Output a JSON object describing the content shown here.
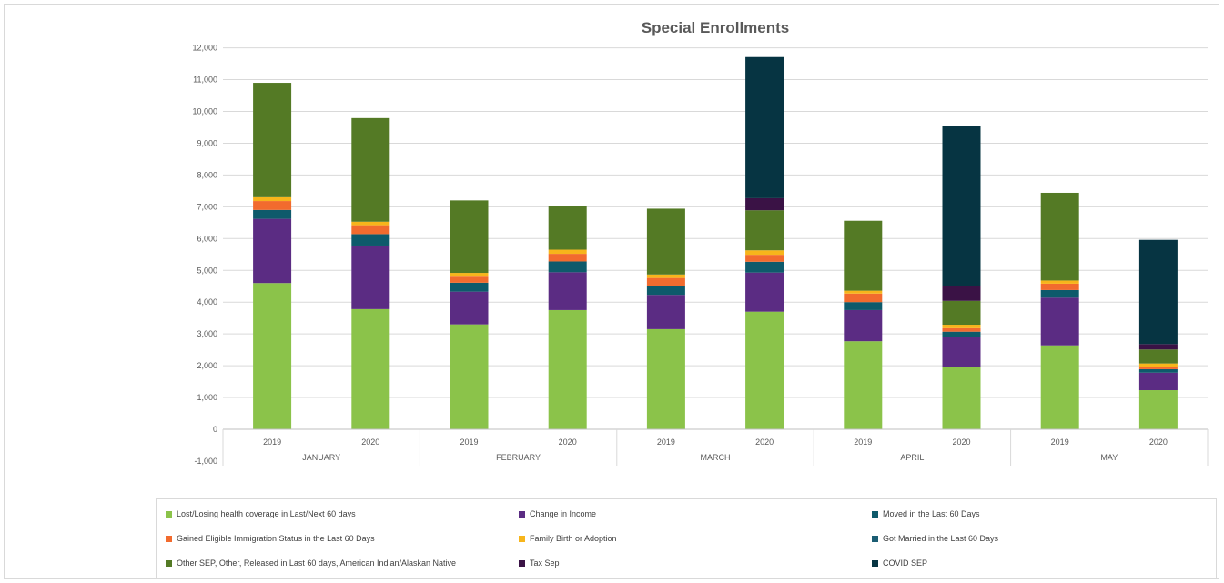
{
  "chart_data": {
    "type": "bar",
    "stacked": true,
    "title": "Special Enrollments",
    "groups": [
      "JANUARY",
      "FEBRUARY",
      "MARCH",
      "APRIL",
      "MAY"
    ],
    "categories": [
      "2019",
      "2020",
      "2019",
      "2020",
      "2019",
      "2020",
      "2019",
      "2020",
      "2019",
      "2020"
    ],
    "y_ticks": [
      "-1,000",
      "0",
      "1,000",
      "2,000",
      "3,000",
      "4,000",
      "5,000",
      "6,000",
      "7,000",
      "8,000",
      "9,000",
      "10,000",
      "11,000",
      "12,000"
    ],
    "ylim": [
      -1000,
      12000
    ],
    "grid": true,
    "legend_position": "bottom",
    "series": [
      {
        "name": "Lost/Losing health coverage in Last/Next 60 days",
        "color": "#8bc34a",
        "values": [
          4600,
          3780,
          3300,
          3750,
          3150,
          3700,
          2770,
          1960,
          2640,
          1230
        ]
      },
      {
        "name": "Change in Income",
        "color": "#5b2c83",
        "values": [
          2020,
          2000,
          1030,
          1190,
          1080,
          1230,
          980,
          940,
          1500,
          550
        ]
      },
      {
        "name": "Moved in the Last 60 Days",
        "color": "#0e5a6b",
        "values": [
          280,
          360,
          280,
          340,
          280,
          340,
          250,
          170,
          240,
          110
        ]
      },
      {
        "name": "Gained Eligible Immigration Status in the Last 60 Days",
        "color": "#f26b2e",
        "values": [
          280,
          280,
          190,
          240,
          250,
          220,
          270,
          110,
          200,
          70
        ]
      },
      {
        "name": "Family Birth or Adoption",
        "color": "#f7b51b",
        "values": [
          120,
          110,
          120,
          130,
          110,
          140,
          90,
          110,
          100,
          110
        ]
      },
      {
        "name": "Got Married in the Last 60 Days",
        "color": "#1b5d73",
        "values": [
          0,
          0,
          0,
          0,
          0,
          0,
          0,
          0,
          0,
          0
        ]
      },
      {
        "name": "Other SEP, Other, Released in Last 60 days, American Indian/Alaskan Native",
        "color": "#547a25",
        "values": [
          3600,
          3260,
          2280,
          1370,
          2070,
          1260,
          2200,
          750,
          2760,
          440
        ]
      },
      {
        "name": "Tax Sep",
        "color": "#3a1245",
        "values": [
          0,
          0,
          0,
          0,
          0,
          380,
          0,
          470,
          0,
          170
        ]
      },
      {
        "name": "COVID SEP",
        "color": "#063442",
        "values": [
          0,
          0,
          0,
          0,
          0,
          4440,
          0,
          5040,
          0,
          3280
        ]
      }
    ]
  }
}
